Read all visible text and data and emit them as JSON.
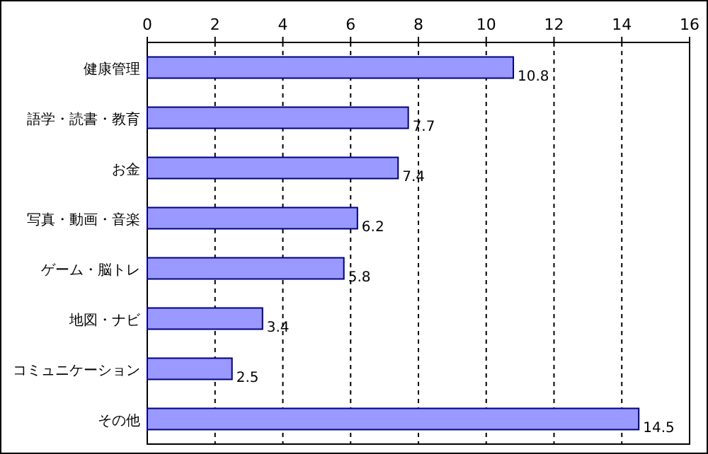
{
  "chart_data": {
    "type": "bar",
    "orientation": "horizontal",
    "categories": [
      "健康管理",
      "語学・読書・教育",
      "お金",
      "写真・動画・音楽",
      "ゲーム・脳トレ",
      "地図・ナビ",
      "コミュニケーション",
      "その他"
    ],
    "values": [
      10.8,
      7.7,
      7.4,
      6.2,
      5.8,
      3.4,
      2.5,
      14.5
    ],
    "color": "#9999ff",
    "xlim": [
      0,
      16
    ],
    "xticks": [
      0,
      2,
      4,
      6,
      8,
      10,
      12,
      14,
      16
    ],
    "grid": "x",
    "data_labels": true
  }
}
